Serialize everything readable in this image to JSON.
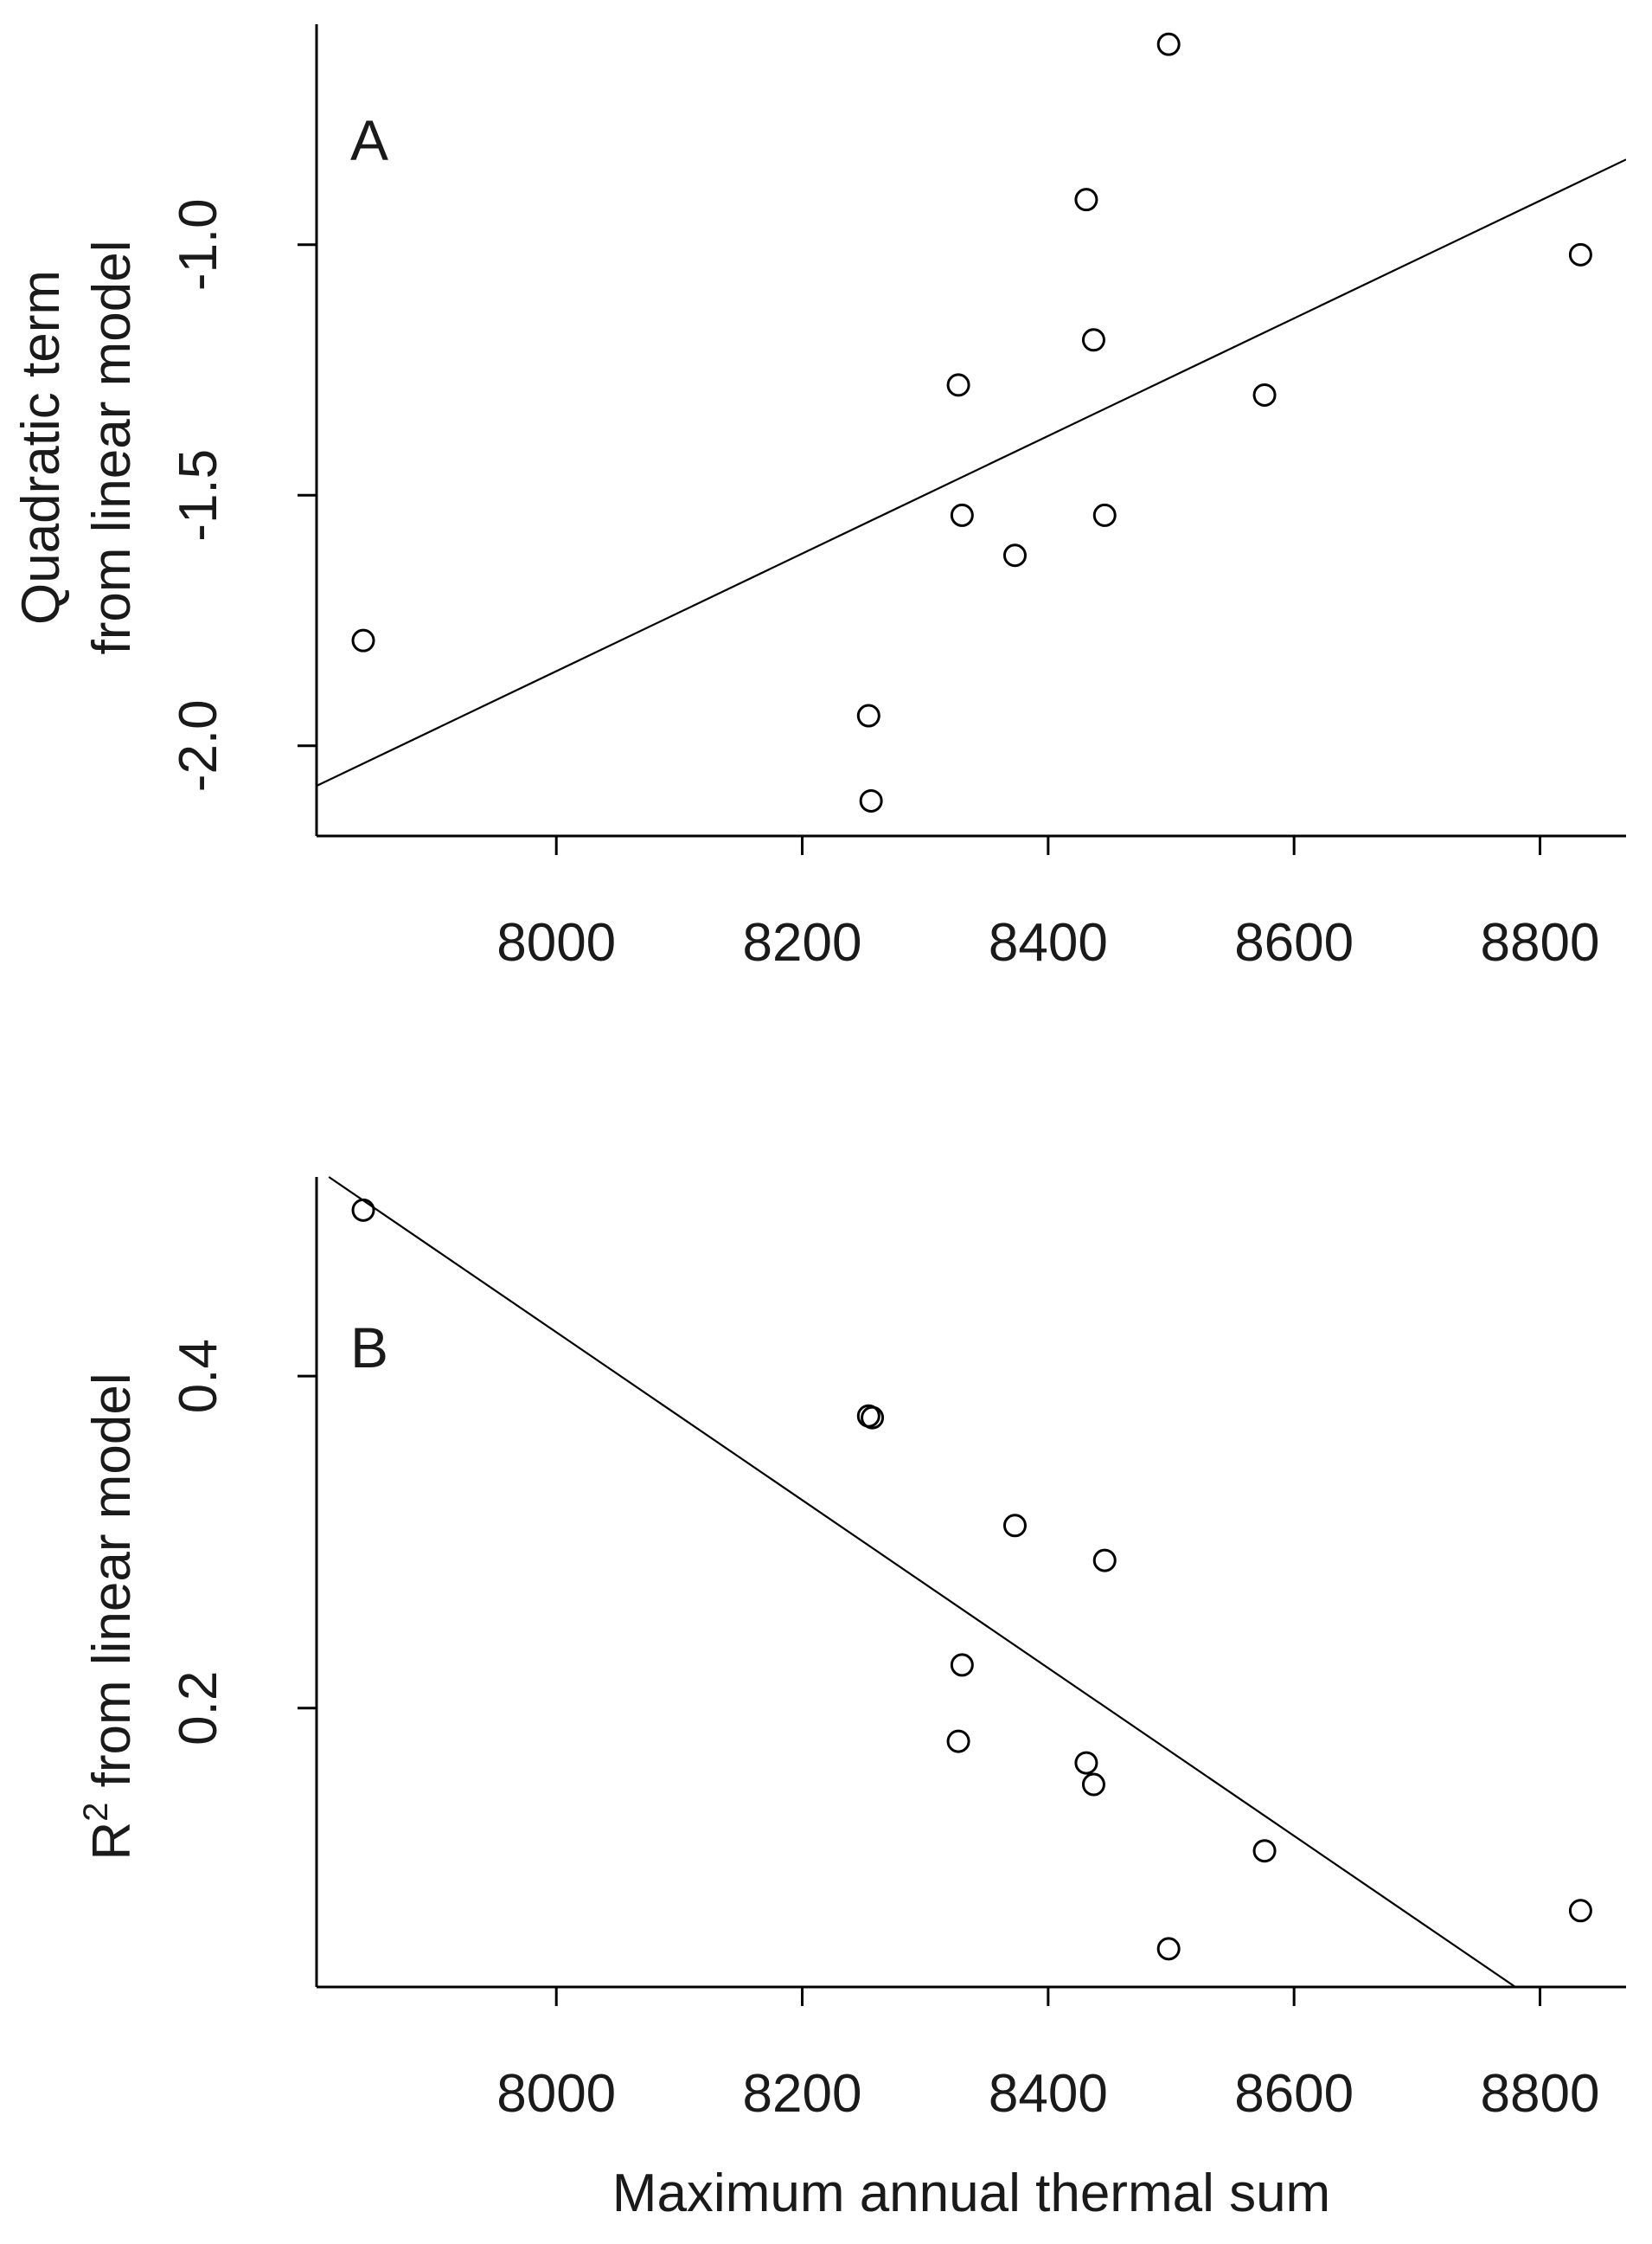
{
  "chart_data": [
    {
      "type": "scatter",
      "panel_label": "A",
      "ylabel_line1": "Quadratic term",
      "ylabel_line2": "from linear model",
      "xlim": [
        7805,
        8870
      ],
      "ylim": [
        -2.18,
        -0.56
      ],
      "x_ticks": [
        8000,
        8200,
        8400,
        8600,
        8800
      ],
      "y_ticks": [
        -2.0,
        -1.5,
        -1.0
      ],
      "y_tick_labels": [
        "-2.0",
        "-1.5",
        "-1.0"
      ],
      "points": [
        {
          "x": 7843,
          "y": -1.79
        },
        {
          "x": 8254,
          "y": -1.94
        },
        {
          "x": 8256,
          "y": -2.11
        },
        {
          "x": 8327,
          "y": -1.28
        },
        {
          "x": 8330,
          "y": -1.54
        },
        {
          "x": 8373,
          "y": -1.62
        },
        {
          "x": 8431,
          "y": -0.91
        },
        {
          "x": 8437,
          "y": -1.19
        },
        {
          "x": 8446,
          "y": -1.54
        },
        {
          "x": 8498,
          "y": -0.6
        },
        {
          "x": 8576,
          "y": -1.3
        },
        {
          "x": 8833,
          "y": -1.02
        }
      ],
      "fit_line": [
        {
          "x": 7805,
          "y": -2.08
        },
        {
          "x": 8870,
          "y": -0.83
        }
      ]
    },
    {
      "type": "scatter",
      "panel_label": "B",
      "ylabel_base": "R",
      "ylabel_sup": "2",
      "ylabel_rest": " from linear model",
      "xlabel": "Maximum annual thermal sum",
      "xlim": [
        7805,
        8870
      ],
      "ylim": [
        0.032,
        0.52
      ],
      "x_ticks": [
        8000,
        8200,
        8400,
        8600,
        8800
      ],
      "y_ticks": [
        0.2,
        0.4
      ],
      "y_tick_labels": [
        "0.2",
        "0.4"
      ],
      "points": [
        {
          "x": 7843,
          "y": 0.5
        },
        {
          "x": 8254,
          "y": 0.376
        },
        {
          "x": 8257,
          "y": 0.375
        },
        {
          "x": 8373,
          "y": 0.31
        },
        {
          "x": 8446,
          "y": 0.289
        },
        {
          "x": 8330,
          "y": 0.226
        },
        {
          "x": 8327,
          "y": 0.18
        },
        {
          "x": 8431,
          "y": 0.167
        },
        {
          "x": 8437,
          "y": 0.154
        },
        {
          "x": 8576,
          "y": 0.114
        },
        {
          "x": 8833,
          "y": 0.078
        },
        {
          "x": 8498,
          "y": 0.055
        }
      ],
      "fit_line": [
        {
          "x": 7815,
          "y": 0.52
        },
        {
          "x": 8780,
          "y": 0.032
        }
      ]
    }
  ]
}
